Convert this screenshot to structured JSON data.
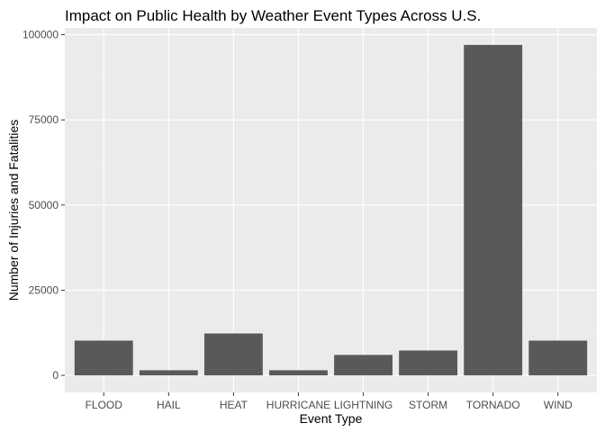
{
  "chart_data": {
    "type": "bar",
    "title": "Impact on Public Health by Weather Event Types Across U.S.",
    "xlabel": "Event Type",
    "ylabel": "Number of Injuries and Fatalities",
    "categories": [
      "FLOOD",
      "HAIL",
      "HEAT",
      "HURRICANE",
      "LIGHTNING",
      "STORM",
      "TORNADO",
      "WIND"
    ],
    "values": [
      10200,
      1500,
      12300,
      1500,
      6000,
      7300,
      97000,
      10200
    ],
    "ylim": [
      -5000,
      102000
    ],
    "yticks": [
      0,
      25000,
      50000,
      75000,
      100000
    ],
    "ytick_labels": [
      "0",
      "25000",
      "50000",
      "75000",
      "100000"
    ],
    "grid": true,
    "legend": "none",
    "colors": {
      "bar": "#595959",
      "panel": "#ebebeb",
      "grid_major": "#ffffff",
      "grid_minor": "#f5f5f5",
      "tick": "#333333"
    }
  }
}
